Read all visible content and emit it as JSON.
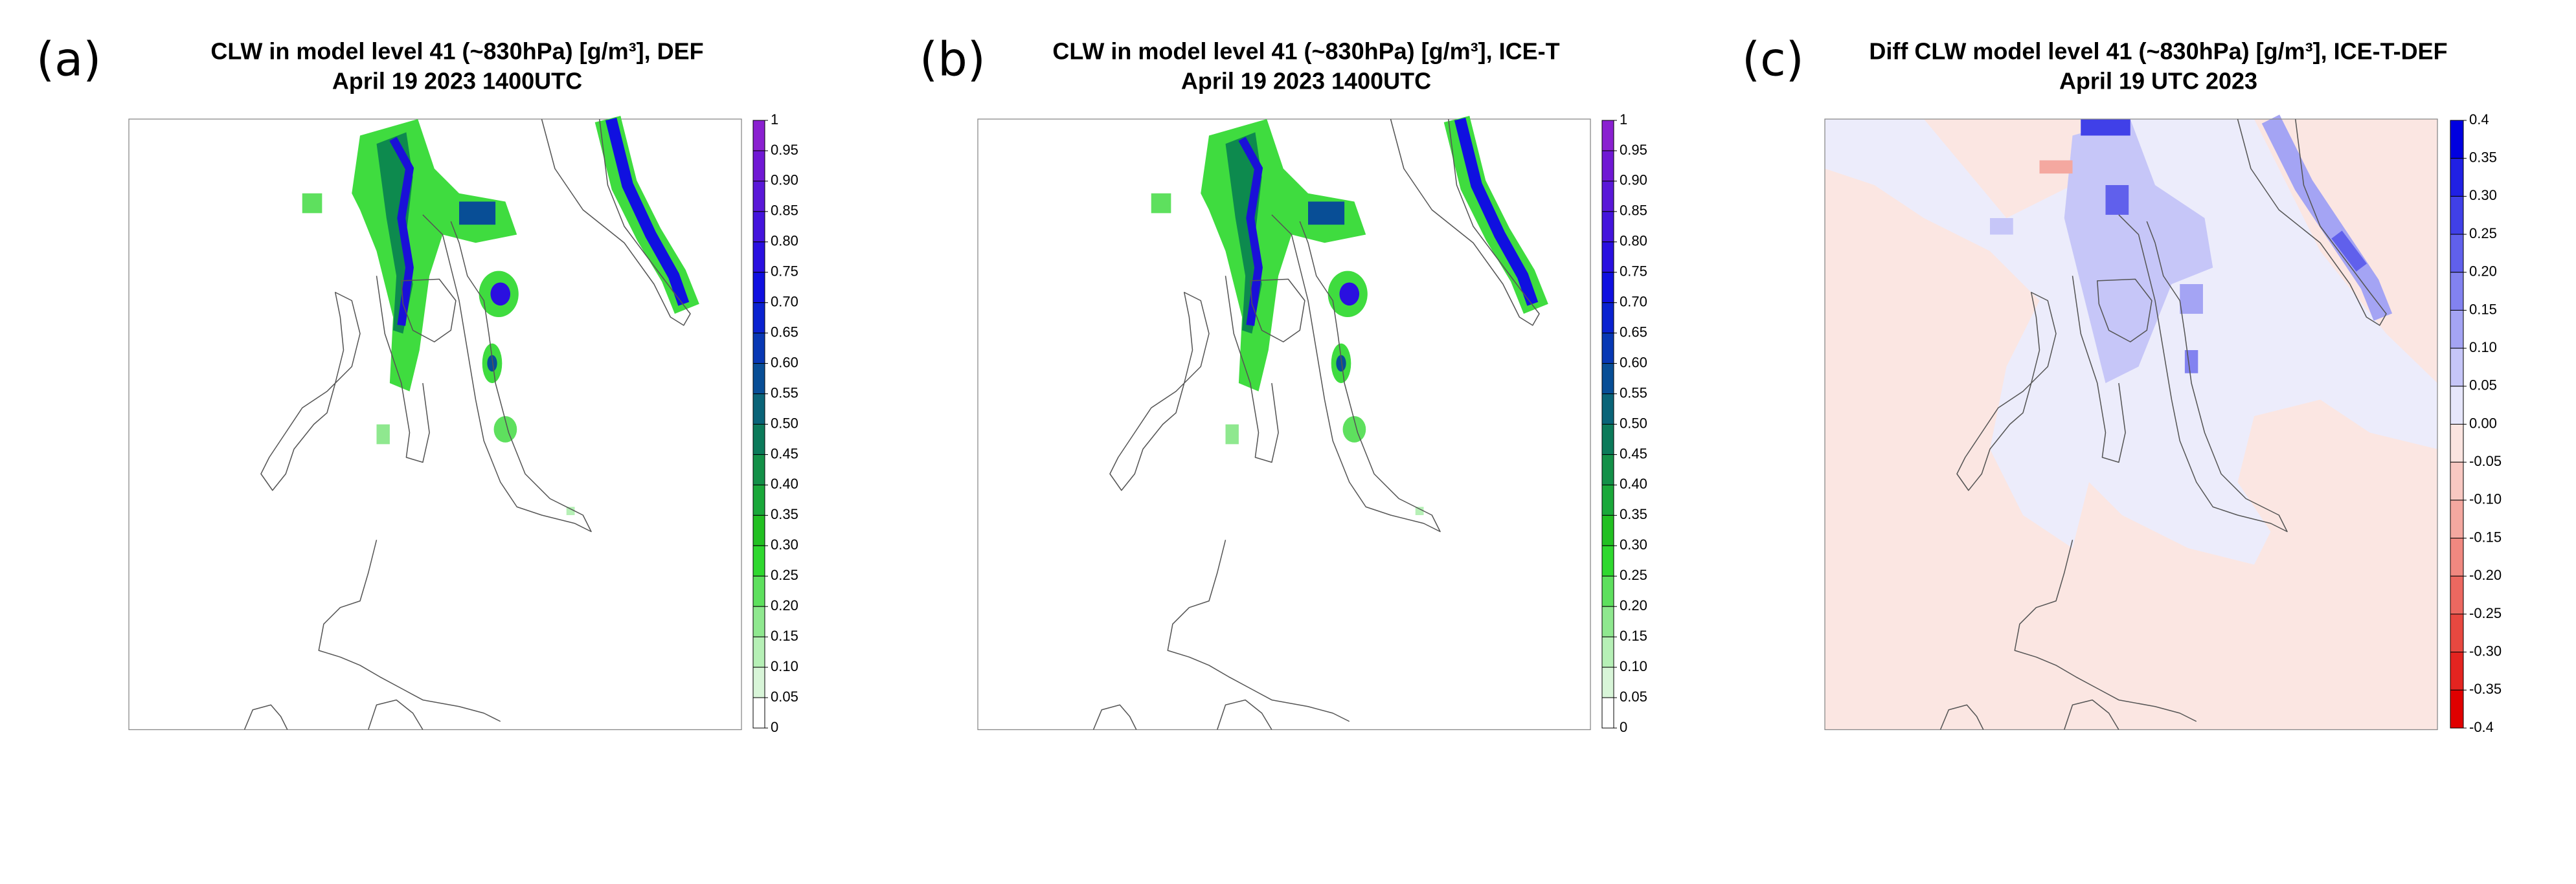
{
  "panels": [
    {
      "label": "(a)",
      "title": "CLW in model level 41 (~830hPa) [g/m³], DEF",
      "subtitle": "April 19 2023 1400UTC",
      "colorbar": {
        "ticks": [
          "1",
          "0.95",
          "0.90",
          "0.85",
          "0.80",
          "0.75",
          "0.70",
          "0.65",
          "0.60",
          "0.55",
          "0.50",
          "0.45",
          "0.40",
          "0.35",
          "0.30",
          "0.25",
          "0.20",
          "0.15",
          "0.10",
          "0.05",
          "0"
        ],
        "colors": [
          "#8a20d0",
          "#7018d4",
          "#5a18d8",
          "#4414dc",
          "#2a10e0",
          "#1010e0",
          "#0a22d0",
          "#0838b4",
          "#084e96",
          "#0a6478",
          "#0c7a5a",
          "#139048",
          "#1aa83a",
          "#22c022",
          "#2fd82f",
          "#5ee05e",
          "#8fe88f",
          "#b6f0b6",
          "#d8f5d8",
          "#ffffff"
        ]
      }
    },
    {
      "label": "(b)",
      "title": "CLW in model level 41 (~830hPa) [g/m³], ICE-T",
      "subtitle": "April 19 2023 1400UTC",
      "colorbar": {
        "ticks": [
          "1",
          "0.95",
          "0.90",
          "0.85",
          "0.80",
          "0.75",
          "0.70",
          "0.65",
          "0.60",
          "0.55",
          "0.50",
          "0.45",
          "0.40",
          "0.35",
          "0.30",
          "0.25",
          "0.20",
          "0.15",
          "0.10",
          "0.05",
          "0"
        ],
        "colors": [
          "#8a20d0",
          "#7018d4",
          "#5a18d8",
          "#4414dc",
          "#2a10e0",
          "#1010e0",
          "#0a22d0",
          "#0838b4",
          "#084e96",
          "#0a6478",
          "#0c7a5a",
          "#139048",
          "#1aa83a",
          "#22c022",
          "#2fd82f",
          "#5ee05e",
          "#8fe88f",
          "#b6f0b6",
          "#d8f5d8",
          "#ffffff"
        ]
      }
    },
    {
      "label": "(c)",
      "title": "Diff CLW model level 41 (~830hPa) [g/m³], ICE-T-DEF",
      "subtitle": "April 19 UTC 2023",
      "colorbar": {
        "ticks": [
          "0.4",
          "0.35",
          "0.30",
          "0.25",
          "0.20",
          "0.15",
          "0.10",
          "0.05",
          "0.00",
          "-0.05",
          "-0.10",
          "-0.15",
          "-0.20",
          "-0.25",
          "-0.30",
          "-0.35",
          "-0.4"
        ],
        "colors": [
          "#0000e0",
          "#2020e4",
          "#4040e8",
          "#6060ec",
          "#8282f0",
          "#a4a4f4",
          "#c6c6f8",
          "#e6e6fb",
          "#fbe4e0",
          "#f8c8c2",
          "#f4a8a0",
          "#f08880",
          "#ec6860",
          "#e84840",
          "#e42420",
          "#e00000"
        ]
      }
    }
  ]
}
